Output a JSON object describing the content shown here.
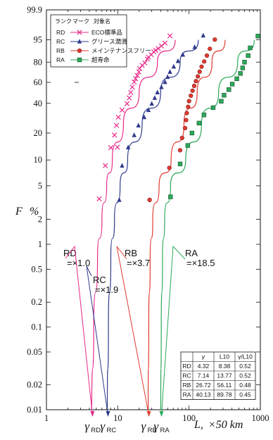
{
  "chart_data": {
    "type": "scatter",
    "x_scale": "log",
    "y_scale": "weibull",
    "xlim": [
      1,
      1000
    ],
    "ylim": [
      0.01,
      99.9
    ],
    "ylabel": "F",
    "ylabel_unit": "%",
    "xlabel": "L,",
    "xlabel_unit": "×50 km",
    "x_ticks": [
      "1",
      "10",
      "100",
      "1000"
    ],
    "y_ticks": [
      "0.01",
      "0.02",
      "0.05",
      "0.1",
      "0.2",
      "0.5",
      "1",
      "2",
      "5",
      "10",
      "20",
      "40",
      "60",
      "80",
      "95",
      "99.9"
    ],
    "legend": {
      "header_rank": "ランク",
      "header_mark": "マーク",
      "header_name": "対象名",
      "placement": "top-left"
    },
    "series": [
      {
        "rank": "RD",
        "name": "ECO標準品",
        "marker": "x",
        "color": "#e8288a",
        "x": [
          5.5,
          6.7,
          8.0,
          9.0,
          9.6,
          9.9,
          10.2,
          11.5,
          13.5,
          14.5,
          15.2,
          16.0,
          17.0,
          17.8,
          18.8,
          19.8,
          20.3,
          22,
          24,
          26,
          27,
          29.5,
          32,
          34,
          37,
          41,
          46,
          54
        ],
        "y": [
          3.5,
          8.6,
          13.8,
          19.0,
          24.1,
          14.0,
          29.3,
          34.5,
          39.7,
          44.8,
          50.0,
          55.2,
          60.3,
          63.8,
          67.0,
          70.6,
          74.0,
          77.0,
          79.3,
          82.6,
          84.2,
          86.2,
          88.3,
          89.3,
          90.5,
          92.0,
          93.5,
          96.5
        ],
        "gamma": 4.32,
        "L10": 8.38,
        "ratio": 0.52,
        "curve": [
          [
            4.32,
            0.01
          ],
          [
            4.6,
            0.1
          ],
          [
            5.2,
            0.7
          ],
          [
            6.0,
            2
          ],
          [
            7.0,
            5
          ],
          [
            8.38,
            10
          ],
          [
            12,
            25
          ],
          [
            20,
            50
          ],
          [
            36,
            80
          ],
          [
            64,
            95
          ]
        ]
      },
      {
        "rank": "RC",
        "name": "グリース潤滑",
        "marker": "triangle",
        "color": "#2e3a8c",
        "x": [
          10.5,
          11.5,
          14.0,
          17.0,
          19.5,
          23.5,
          27,
          30,
          33,
          36,
          41,
          46,
          50,
          54,
          61,
          70,
          82,
          120,
          158
        ],
        "y": [
          3.4,
          8.6,
          13.9,
          19.0,
          24.1,
          29.3,
          34.5,
          39.7,
          44.8,
          50.0,
          55.2,
          60.3,
          65.5,
          70.7,
          75.9,
          81.0,
          86.2,
          91.4,
          96.6
        ],
        "gamma": 7.14,
        "L10": 13.77,
        "ratio": 0.52,
        "curve": [
          [
            7.14,
            0.01
          ],
          [
            7.4,
            0.1
          ],
          [
            8.0,
            0.7
          ],
          [
            9.0,
            2
          ],
          [
            10.8,
            5
          ],
          [
            13.77,
            10
          ],
          [
            22,
            25
          ],
          [
            40,
            50
          ],
          [
            75,
            80
          ],
          [
            135,
            95
          ]
        ]
      },
      {
        "rank": "RB",
        "name": "メインテナンスフリー",
        "marker": "circle",
        "color": "#e03b32",
        "x": [
          28,
          53,
          75,
          80,
          88,
          91,
          93,
          97,
          100,
          106,
          112,
          118,
          125,
          133,
          141,
          150,
          163,
          178,
          196,
          230
        ],
        "y": [
          3.4,
          8.1,
          12.9,
          17.7,
          22.6,
          27.4,
          32.2,
          37.1,
          41.9,
          46.8,
          51.6,
          56.4,
          61.3,
          66.1,
          70.9,
          75.8,
          80.6,
          85.5,
          90.3,
          95.1
        ],
        "gamma": 26.72,
        "L10": 56.11,
        "ratio": 0.48,
        "curve": [
          [
            26.72,
            0.01
          ],
          [
            27.2,
            0.1
          ],
          [
            28.5,
            0.7
          ],
          [
            31,
            2
          ],
          [
            38,
            5
          ],
          [
            56.11,
            10
          ],
          [
            85,
            25
          ],
          [
            130,
            50
          ],
          [
            210,
            80
          ],
          [
            320,
            95
          ]
        ]
      },
      {
        "rank": "RA",
        "name": "超寿命",
        "marker": "square",
        "color": "#2ca85a",
        "x": [
          55,
          75,
          96,
          110,
          138,
          162,
          218,
          283,
          310,
          362,
          404,
          468,
          525,
          565,
          600,
          675,
          720,
          925
        ],
        "y": [
          3.7,
          9.0,
          14.6,
          20.0,
          25.5,
          30.9,
          36.4,
          41.8,
          47.3,
          52.7,
          58.2,
          63.7,
          69.1,
          74.6,
          80.0,
          85.5,
          90.9,
          96.4
        ],
        "gamma": 40.13,
        "L10": 89.78,
        "ratio": 0.45,
        "curve": [
          [
            40.13,
            0.01
          ],
          [
            40.8,
            0.1
          ],
          [
            42.5,
            0.7
          ],
          [
            45.5,
            2
          ],
          [
            55,
            5
          ],
          [
            89.78,
            10
          ],
          [
            150,
            25
          ],
          [
            260,
            50
          ],
          [
            480,
            80
          ],
          [
            820,
            95
          ]
        ]
      }
    ],
    "annotations": [
      {
        "id": "RD",
        "line1": "RD",
        "line2": "=×1.0"
      },
      {
        "id": "RC",
        "line1": "RC",
        "line2": "=×1.9"
      },
      {
        "id": "RB",
        "line1": "RB",
        "line2": "=×3.7"
      },
      {
        "id": "RA",
        "line1": "RA",
        "line2": "=×18.5"
      }
    ],
    "gamma_labels": [
      {
        "rank": "RD",
        "symbol": "γ",
        "sub": "RD"
      },
      {
        "rank": "RC",
        "symbol": "γ",
        "sub": "RC"
      },
      {
        "rank": "RB",
        "symbol": "γ",
        "sub": "RB"
      },
      {
        "rank": "RA",
        "symbol": "γ",
        "sub": "RA"
      }
    ],
    "table": {
      "headers": [
        "",
        "γ",
        "L10",
        "γ/L10"
      ],
      "rows": [
        [
          "RD",
          "4.32",
          "8.38",
          "0.52"
        ],
        [
          "RC",
          "7.14",
          "13.77",
          "0.52"
        ],
        [
          "RB",
          "26.72",
          "56.11",
          "0.48"
        ],
        [
          "RA",
          "40.13",
          "89.78",
          "0.45"
        ]
      ]
    },
    "grid": false
  }
}
